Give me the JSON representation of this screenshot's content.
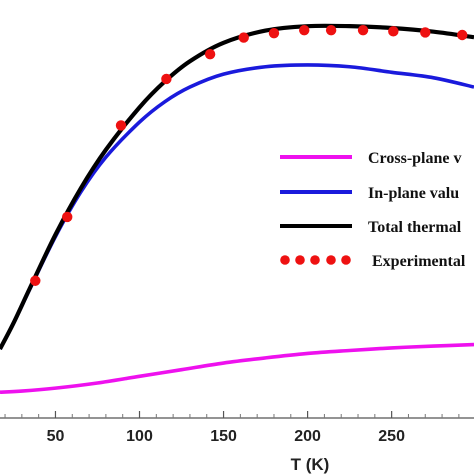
{
  "chart_data": {
    "type": "line",
    "xlabel": "T (K)",
    "xlim": [
      17,
      299
    ],
    "ylim": [
      0,
      1
    ],
    "x_ticks": [
      50,
      100,
      150,
      200,
      250
    ],
    "legend": {
      "position": "right",
      "entries": [
        {
          "label": "Cross-plane v",
          "color": "#ee11ee",
          "style": "line"
        },
        {
          "label": "In-plane valu",
          "color": "#1a1adc",
          "style": "line"
        },
        {
          "label": "Total thermal",
          "color": "#000000",
          "style": "line"
        },
        {
          "label": "Experimental",
          "color": "#ee1111",
          "style": "dots"
        }
      ]
    },
    "series": [
      {
        "key": "cross_plane",
        "color": "#ee11ee",
        "x": [
          17,
          30,
          50,
          75,
          100,
          125,
          150,
          175,
          200,
          225,
          250,
          275,
          299
        ],
        "y": [
          0.013,
          0.016,
          0.024,
          0.038,
          0.056,
          0.074,
          0.092,
          0.106,
          0.118,
          0.126,
          0.133,
          0.138,
          0.142
        ]
      },
      {
        "key": "in_plane",
        "color": "#1a1adc",
        "x": [
          17,
          25,
          35,
          50,
          65,
          80,
          100,
          115,
          130,
          150,
          175,
          200,
          225,
          250,
          275,
          299
        ],
        "y": [
          0.13,
          0.2,
          0.295,
          0.435,
          0.555,
          0.65,
          0.745,
          0.8,
          0.84,
          0.875,
          0.895,
          0.9,
          0.895,
          0.88,
          0.865,
          0.84
        ]
      },
      {
        "key": "total",
        "color": "#000000",
        "x": [
          17,
          25,
          35,
          50,
          65,
          80,
          100,
          115,
          130,
          150,
          175,
          200,
          225,
          250,
          275,
          299
        ],
        "y": [
          0.13,
          0.2,
          0.297,
          0.44,
          0.565,
          0.67,
          0.785,
          0.855,
          0.91,
          0.96,
          0.993,
          1.005,
          1.005,
          1.0,
          0.99,
          0.975
        ]
      },
      {
        "key": "experimental",
        "color": "#ee1111",
        "marker": "dot",
        "x": [
          38,
          57,
          89,
          116,
          142,
          162,
          180,
          198,
          214,
          233,
          251,
          270,
          292
        ],
        "y": [
          0.315,
          0.488,
          0.736,
          0.862,
          0.929,
          0.974,
          0.986,
          0.994,
          0.994,
          0.994,
          0.991,
          0.988,
          0.981
        ]
      }
    ]
  }
}
